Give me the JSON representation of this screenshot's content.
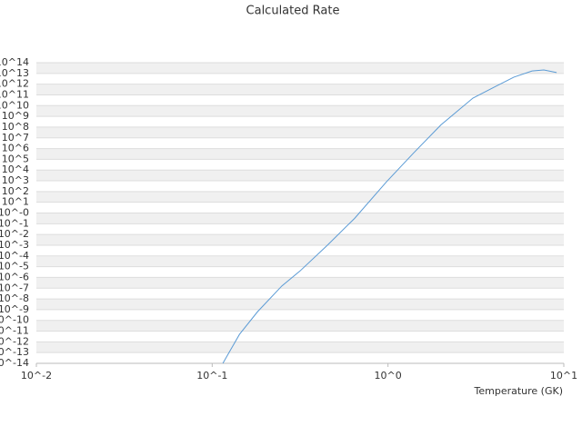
{
  "chart_data": {
    "type": "line",
    "title": "Calculated Rate",
    "x_label": "Temperature (GK)",
    "log_x": true,
    "log_y": true,
    "grid": true,
    "xlim": [
      0.01,
      10
    ],
    "ylim": [
      1e-14,
      100000000000000.0
    ],
    "xticks": [
      {
        "value": 0.01,
        "label": "10^-2"
      },
      {
        "value": 0.1,
        "label": "10^-1"
      },
      {
        "value": 1,
        "label": "10^0"
      },
      {
        "value": 10,
        "label": "10^1"
      }
    ],
    "yticks": [
      {
        "value": 1e-14,
        "label": "10^-14"
      },
      {
        "value": 1e-13,
        "label": "10^-13"
      },
      {
        "value": 1e-12,
        "label": "10^-12"
      },
      {
        "value": 1e-11,
        "label": "10^-11"
      },
      {
        "value": 1e-10,
        "label": "10^-10"
      },
      {
        "value": 1e-09,
        "label": "10^-9"
      },
      {
        "value": 1e-08,
        "label": "10^-8"
      },
      {
        "value": 1e-07,
        "label": "10^-7"
      },
      {
        "value": 1e-06,
        "label": "10^-6"
      },
      {
        "value": 1e-05,
        "label": "10^-5"
      },
      {
        "value": 0.0001,
        "label": "10^-4"
      },
      {
        "value": 0.001,
        "label": "10^-3"
      },
      {
        "value": 0.01,
        "label": "10^-2"
      },
      {
        "value": 0.1,
        "label": "10^-1"
      },
      {
        "value": 1,
        "label": "10^-0"
      },
      {
        "value": 10,
        "label": "10^1"
      },
      {
        "value": 100,
        "label": "10^2"
      },
      {
        "value": 1000.0,
        "label": "10^3"
      },
      {
        "value": 10000.0,
        "label": "10^4"
      },
      {
        "value": 100000.0,
        "label": "10^5"
      },
      {
        "value": 1000000.0,
        "label": "10^6"
      },
      {
        "value": 10000000.0,
        "label": "10^7"
      },
      {
        "value": 100000000.0,
        "label": "10^8"
      },
      {
        "value": 1000000000.0,
        "label": "10^9"
      },
      {
        "value": 10000000000.0,
        "label": "10^10"
      },
      {
        "value": 100000000000.0,
        "label": "10^11"
      },
      {
        "value": 1000000000000.0,
        "label": "10^12"
      },
      {
        "value": 10000000000000.0,
        "label": "10^13"
      },
      {
        "value": 100000000000000.0,
        "label": "10^14"
      }
    ],
    "x": [
      0.115,
      0.143,
      0.181,
      0.249,
      0.316,
      0.452,
      0.646,
      0.98,
      1.4,
      2.0,
      3.04,
      4.1,
      5.2,
      6.6,
      7.7,
      9.1
    ],
    "series": [
      {
        "color": "#5b9bd5",
        "values": [
          1e-14,
          5e-12,
          6.3e-10,
          1.6e-07,
          4e-06,
          0.001,
          0.32,
          800,
          400000.0,
          160000000.0,
          50000000000.0,
          630000000000.0,
          4500000000000.0,
          17000000000000.0,
          21000000000000.0,
          12000000000000.0
        ]
      }
    ]
  }
}
